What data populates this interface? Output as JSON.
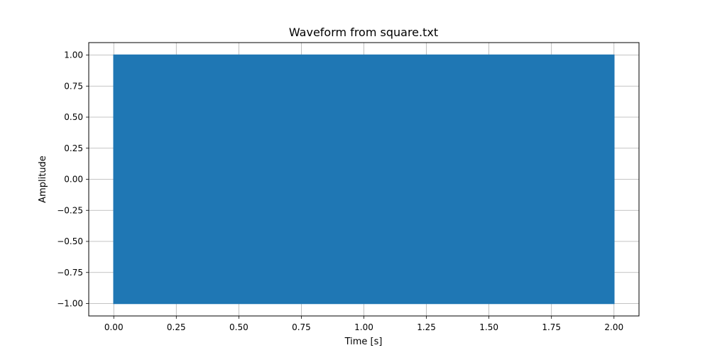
{
  "chart_data": {
    "type": "line",
    "title": "Waveform from square.txt",
    "xlabel": "Time [s]",
    "ylabel": "Amplitude",
    "xlim": [
      -0.1,
      2.1
    ],
    "ylim": [
      -1.1,
      1.1
    ],
    "x_ticks": [
      0.0,
      0.25,
      0.5,
      0.75,
      1.0,
      1.25,
      1.5,
      1.75,
      2.0
    ],
    "x_tick_labels": [
      "0.00",
      "0.25",
      "0.50",
      "0.75",
      "1.00",
      "1.25",
      "1.50",
      "1.75",
      "2.00"
    ],
    "y_ticks": [
      -1.0,
      -0.75,
      -0.5,
      -0.25,
      0.0,
      0.25,
      0.5,
      0.75,
      1.0
    ],
    "y_tick_labels": [
      "−1.00",
      "−0.75",
      "−0.50",
      "−0.25",
      "0.00",
      "0.25",
      "0.50",
      "0.75",
      "1.00"
    ],
    "grid": true,
    "series": [
      {
        "x_range": [
          0.0,
          2.0
        ],
        "y_range": [
          -1.0,
          1.0
        ],
        "color": "#1f77b4",
        "values_description_only": false
      }
    ]
  }
}
